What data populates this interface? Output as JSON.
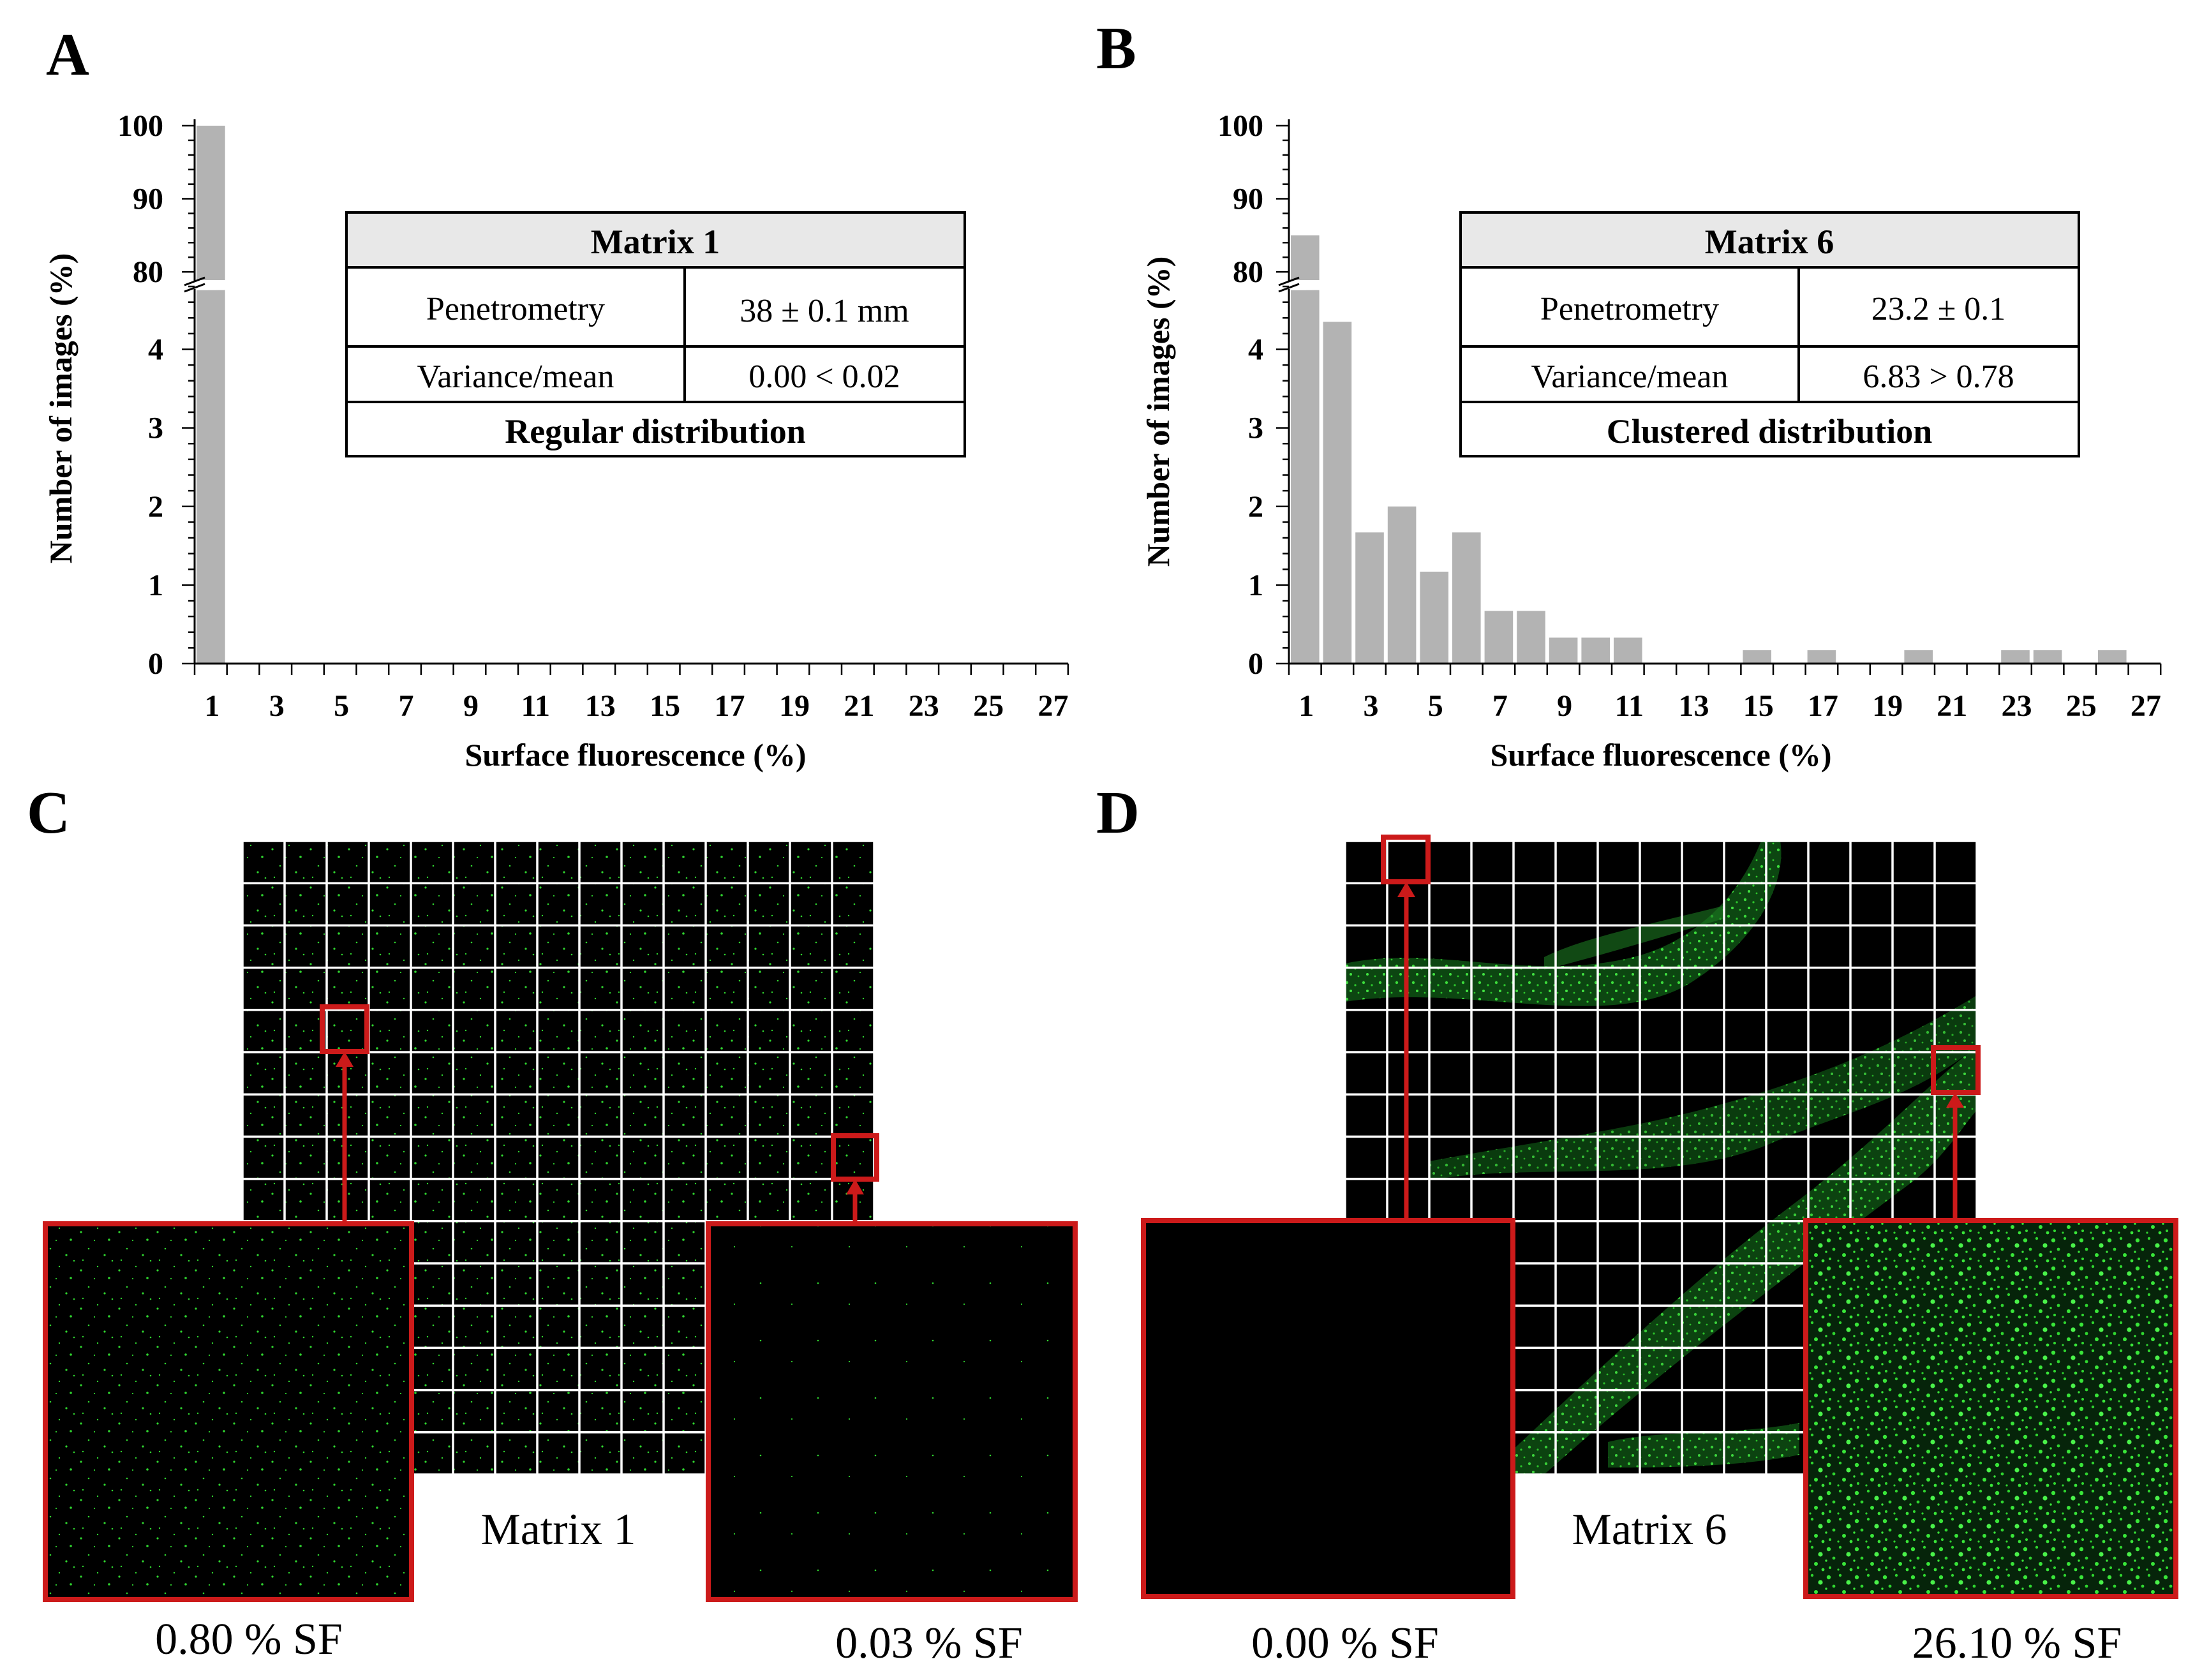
{
  "colors": {
    "bar": "#b3b3b3",
    "table_header_bg": "#e8e8e8",
    "highlight": "#cc1a1a",
    "micro_bg": "#000000",
    "fluorescence": "#2fd62f",
    "grid_line": "#ffffff"
  },
  "panels": {
    "A": {
      "letter": "A",
      "table": {
        "title": "Matrix 1",
        "rows": [
          {
            "label": "Penetrometry",
            "value": "38 ± 0.1 mm"
          },
          {
            "label": "Variance/mean",
            "value": "0.00 < 0.02"
          }
        ],
        "footer": "Regular distribution"
      }
    },
    "B": {
      "letter": "B",
      "table": {
        "title": "Matrix 6",
        "rows": [
          {
            "label": "Penetrometry",
            "value": "23.2 ± 0.1"
          },
          {
            "label": "Variance/mean",
            "value": "6.83 > 0.78"
          }
        ],
        "footer": "Clustered distribution"
      }
    },
    "C": {
      "letter": "C",
      "matrix_label": "Matrix 1",
      "left_caption": "0.80 % SF",
      "right_caption": "0.03 % SF"
    },
    "D": {
      "letter": "D",
      "matrix_label": "Matrix 6",
      "left_caption": "0.00 % SF",
      "right_caption": "26.10 % SF"
    }
  },
  "chart_data": [
    {
      "type": "bar",
      "panel": "A",
      "title": "",
      "xlabel": "Surface fluorescence (%)",
      "ylabel": "Number of images (%)",
      "x_tick_labels": [
        "1",
        "3",
        "5",
        "7",
        "9",
        "11",
        "13",
        "15",
        "17",
        "19",
        "21",
        "23",
        "25",
        "27"
      ],
      "bins": [
        1,
        2,
        3,
        4,
        5,
        6,
        7,
        8,
        9,
        10,
        11,
        12,
        13,
        14,
        15,
        16,
        17,
        18,
        19,
        20,
        21,
        22,
        23,
        24,
        25,
        26,
        27
      ],
      "values": [
        100,
        0,
        0,
        0,
        0,
        0,
        0,
        0,
        0,
        0,
        0,
        0,
        0,
        0,
        0,
        0,
        0,
        0,
        0,
        0,
        0,
        0,
        0,
        0,
        0,
        0,
        0
      ],
      "y_axis": {
        "broken": true,
        "lower_range": [
          0,
          4.8
        ],
        "upper_range": [
          78,
          100
        ],
        "lower_ticks": [
          "0",
          "1",
          "2",
          "3",
          "4"
        ],
        "upper_ticks": [
          "80",
          "90",
          "100"
        ]
      }
    },
    {
      "type": "bar",
      "panel": "B",
      "title": "",
      "xlabel": "Surface fluorescence (%)",
      "ylabel": "Number of images (%)",
      "x_tick_labels": [
        "1",
        "3",
        "5",
        "7",
        "9",
        "11",
        "13",
        "15",
        "17",
        "19",
        "21",
        "23",
        "25",
        "27"
      ],
      "bins": [
        1,
        2,
        3,
        4,
        5,
        6,
        7,
        8,
        9,
        10,
        11,
        12,
        13,
        14,
        15,
        16,
        17,
        18,
        19,
        20,
        21,
        22,
        23,
        24,
        25,
        26,
        27
      ],
      "values": [
        85,
        4.35,
        1.67,
        2.0,
        1.17,
        1.67,
        0.67,
        0.67,
        0.33,
        0.33,
        0.33,
        0,
        0,
        0,
        0.17,
        0,
        0.17,
        0,
        0,
        0.17,
        0,
        0,
        0.17,
        0.17,
        0,
        0.17,
        0
      ],
      "y_axis": {
        "broken": true,
        "lower_range": [
          0,
          4.8
        ],
        "upper_range": [
          78,
          100
        ],
        "lower_ticks": [
          "0",
          "1",
          "2",
          "3",
          "4"
        ],
        "upper_ticks": [
          "80",
          "90",
          "100"
        ]
      }
    }
  ]
}
